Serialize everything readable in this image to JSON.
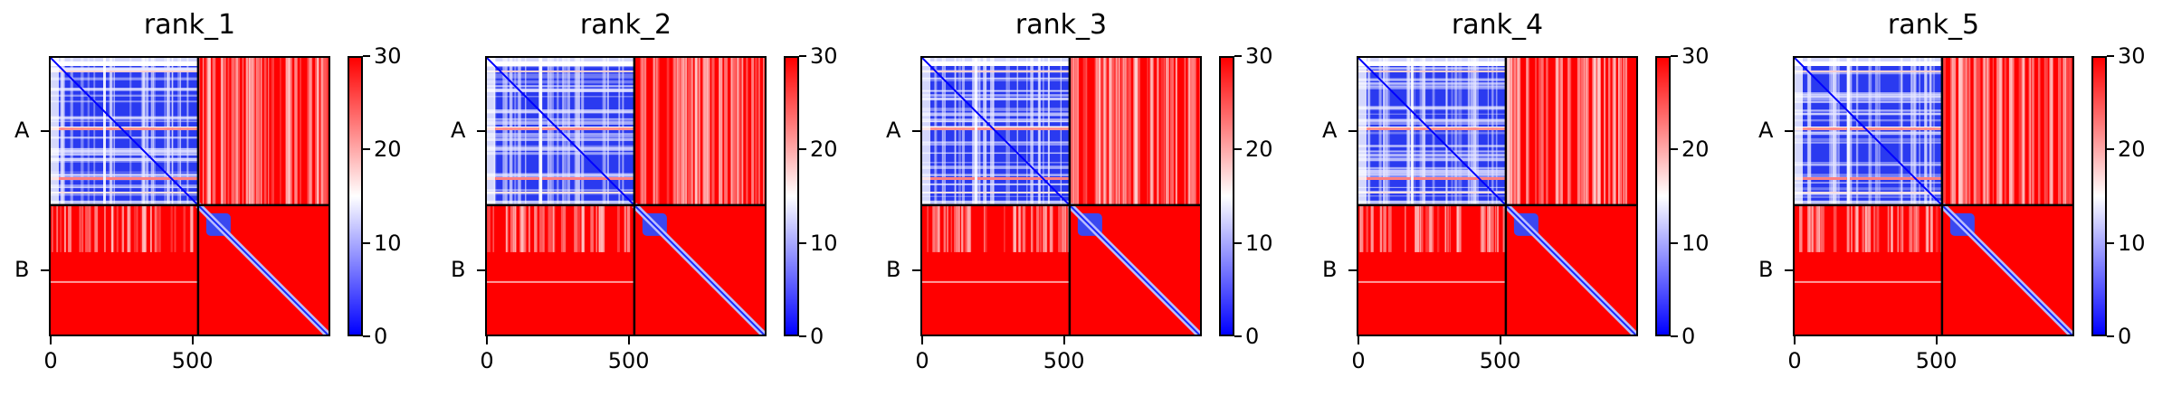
{
  "colormap": {
    "low": "#0000ff",
    "mid": "#ffffff",
    "high": "#ff0000"
  },
  "chart_data": [
    {
      "type": "heatmap",
      "title": "rank_1",
      "chains": [
        "A",
        "B"
      ],
      "chain_boundary": 520,
      "n_residues": 980,
      "xticks": [
        0,
        500
      ],
      "colorbar_range": [
        0,
        30
      ],
      "colorbar_ticks": [
        0,
        10,
        20,
        30
      ]
    },
    {
      "type": "heatmap",
      "title": "rank_2",
      "chains": [
        "A",
        "B"
      ],
      "chain_boundary": 520,
      "n_residues": 980,
      "xticks": [
        0,
        500
      ],
      "colorbar_range": [
        0,
        30
      ],
      "colorbar_ticks": [
        0,
        10,
        20,
        30
      ]
    },
    {
      "type": "heatmap",
      "title": "rank_3",
      "chains": [
        "A",
        "B"
      ],
      "chain_boundary": 520,
      "n_residues": 980,
      "xticks": [
        0,
        500
      ],
      "colorbar_range": [
        0,
        30
      ],
      "colorbar_ticks": [
        0,
        10,
        20,
        30
      ]
    },
    {
      "type": "heatmap",
      "title": "rank_4",
      "chains": [
        "A",
        "B"
      ],
      "chain_boundary": 520,
      "n_residues": 980,
      "xticks": [
        0,
        500
      ],
      "colorbar_range": [
        0,
        30
      ],
      "colorbar_ticks": [
        0,
        10,
        20,
        30
      ]
    },
    {
      "type": "heatmap",
      "title": "rank_5",
      "chains": [
        "A",
        "B"
      ],
      "chain_boundary": 520,
      "n_residues": 980,
      "xticks": [
        0,
        500
      ],
      "colorbar_range": [
        0,
        30
      ],
      "colorbar_ticks": [
        0,
        10,
        20,
        30
      ]
    }
  ]
}
